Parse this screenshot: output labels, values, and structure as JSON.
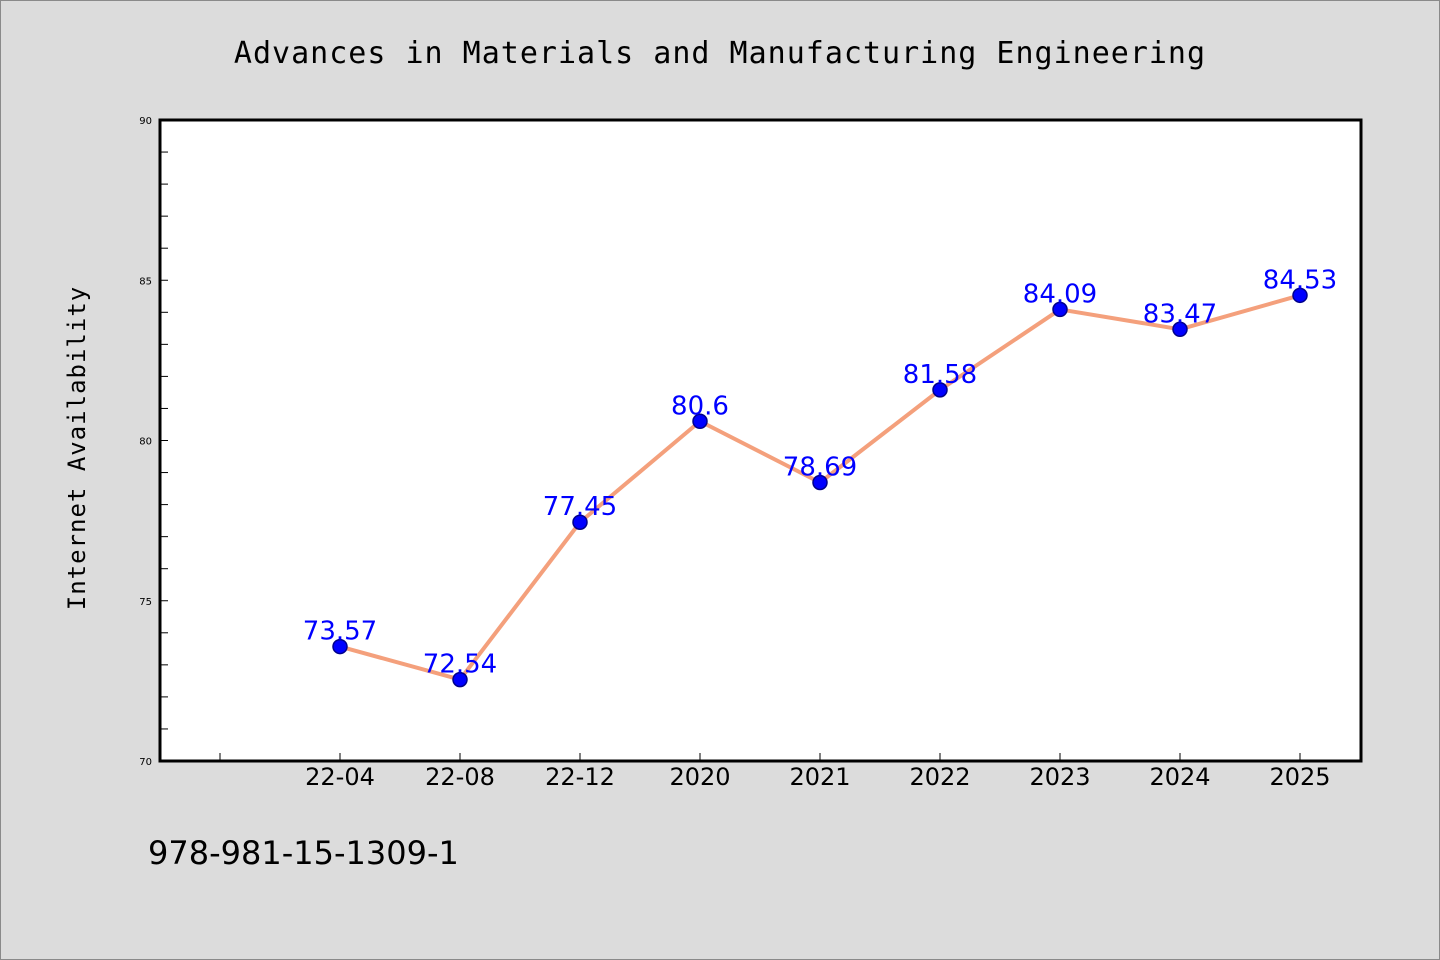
{
  "chart_data": {
    "type": "line",
    "title": "Advances in Materials and Manufacturing Engineering",
    "xlabel": "",
    "ylabel": "Internet Availability",
    "categories": [
      "22-04",
      "22-08",
      "22-12",
      "2020",
      "2021",
      "2022",
      "2023",
      "2024",
      "2025"
    ],
    "series": [
      {
        "values": [
          73.57,
          72.54,
          77.45,
          80.6,
          78.69,
          81.58,
          84.09,
          83.47,
          84.53
        ],
        "labels": [
          "73.57",
          "72.54",
          "77.45",
          "80.6",
          "78.69",
          "81.58",
          "84.09",
          "83.47",
          "84.53"
        ]
      }
    ],
    "ylim": [
      70,
      90
    ],
    "yticks": [
      70,
      75,
      80,
      85,
      90
    ],
    "grid": false,
    "legend": "none",
    "colors": {
      "line": "#f4a07c",
      "marker": "#0000ff",
      "marker_edge": "#00008b",
      "data_label": "#0000ff",
      "plot_bg": "#ffffff",
      "page_bg": "#dcdcdc"
    }
  },
  "footer": {
    "isbn": "978-981-15-1309-1"
  }
}
